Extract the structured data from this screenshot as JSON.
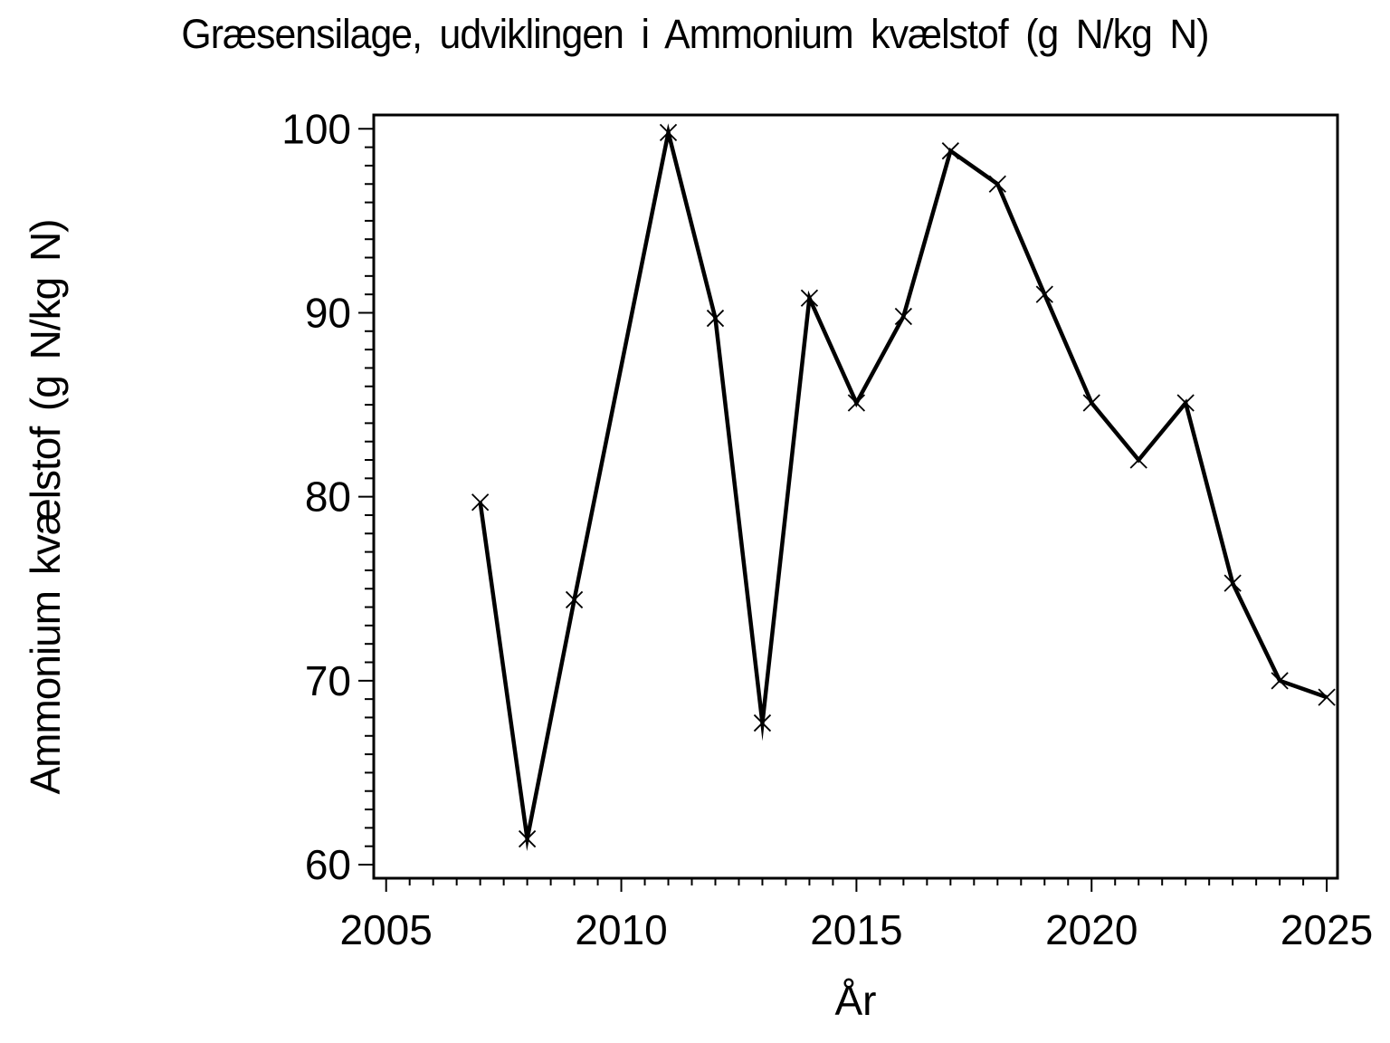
{
  "chart_data": {
    "type": "line",
    "title": "Græsensilage, udviklingen i Ammonium kvælstof (g N/kg N)",
    "xlabel": "År",
    "ylabel": "Ammonium kvælstof (g N/kg N)",
    "xlim": [
      2005,
      2025
    ],
    "ylim": [
      60,
      100
    ],
    "x_major_ticks": [
      2005,
      2010,
      2015,
      2020,
      2025
    ],
    "x_minor_tick_step": 0.5,
    "y_major_ticks": [
      60,
      70,
      80,
      90,
      100
    ],
    "y_minor_tick_step": 1,
    "grid": false,
    "legend": "none",
    "frame": "box",
    "marker": "x",
    "colors": {
      "line": "#000000",
      "marker": "#000000",
      "text": "#000000",
      "background": "#ffffff"
    },
    "series": [
      {
        "name": "Ammonium kvælstof (g N/kg N)",
        "x": [
          2007,
          2008,
          2009,
          2011,
          2012,
          2013,
          2014,
          2015,
          2016,
          2017,
          2018,
          2019,
          2020,
          2021,
          2022,
          2023,
          2024,
          2025
        ],
        "y": [
          79.7,
          61.4,
          74.4,
          99.8,
          89.7,
          67.7,
          90.8,
          85.1,
          89.8,
          98.8,
          97.0,
          91.0,
          85.1,
          82.0,
          85.1,
          75.3,
          70.0,
          69.1
        ]
      }
    ]
  }
}
